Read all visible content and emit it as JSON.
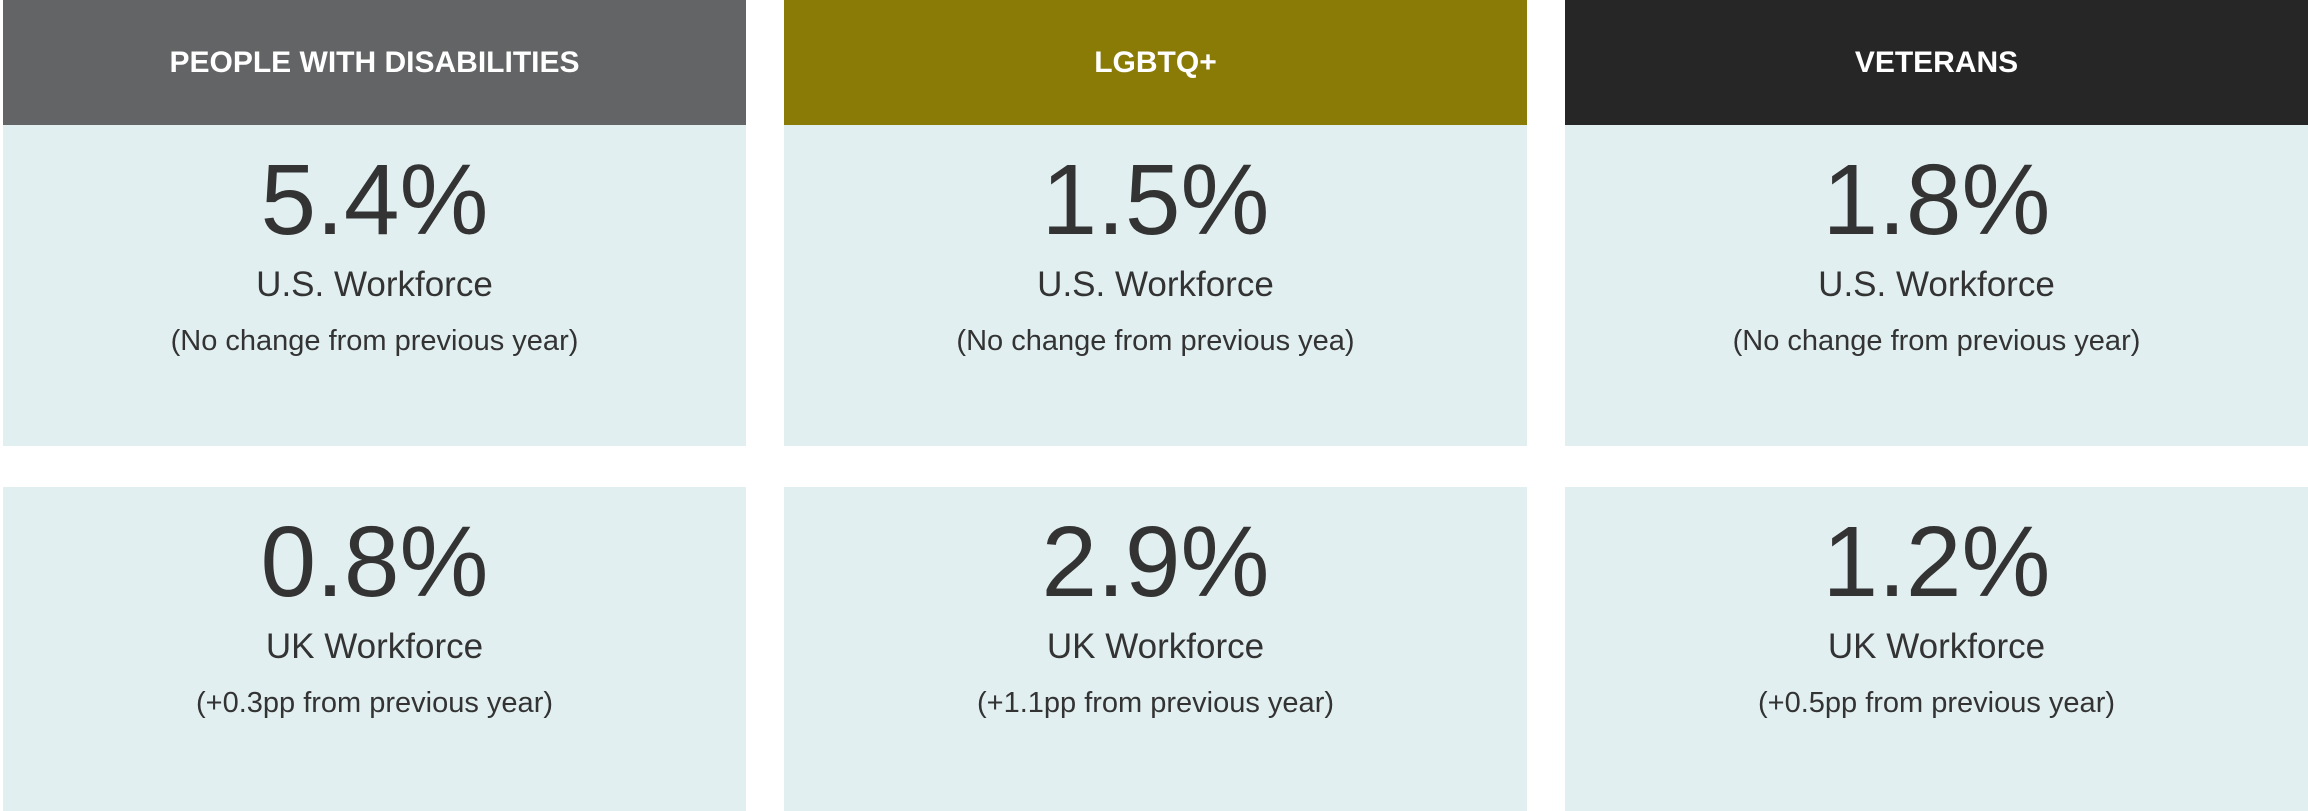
{
  "columns": [
    {
      "header": "PEOPLE WITH DISABILITIES",
      "color": "#636466",
      "cards": [
        {
          "value": "5.4%",
          "label": "U.S. Workforce",
          "note": "(No change from previous year)"
        },
        {
          "value": "0.8%",
          "label": "UK Workforce",
          "note": "(+0.3pp from previous year)"
        }
      ]
    },
    {
      "header": "LGBTQ+",
      "color": "#8a7b07",
      "cards": [
        {
          "value": "1.5%",
          "label": "U.S. Workforce",
          "note": "(No change from previous yea)"
        },
        {
          "value": "2.9%",
          "label": "UK Workforce",
          "note": "(+1.1pp from previous year)"
        }
      ]
    },
    {
      "header": "VETERANS",
      "color": "#262626",
      "cards": [
        {
          "value": "1.8%",
          "label": "U.S. Workforce",
          "note": "(No change from previous year)"
        },
        {
          "value": "1.2%",
          "label": "UK Workforce",
          "note": "(+0.5pp from previous year)"
        }
      ]
    }
  ]
}
